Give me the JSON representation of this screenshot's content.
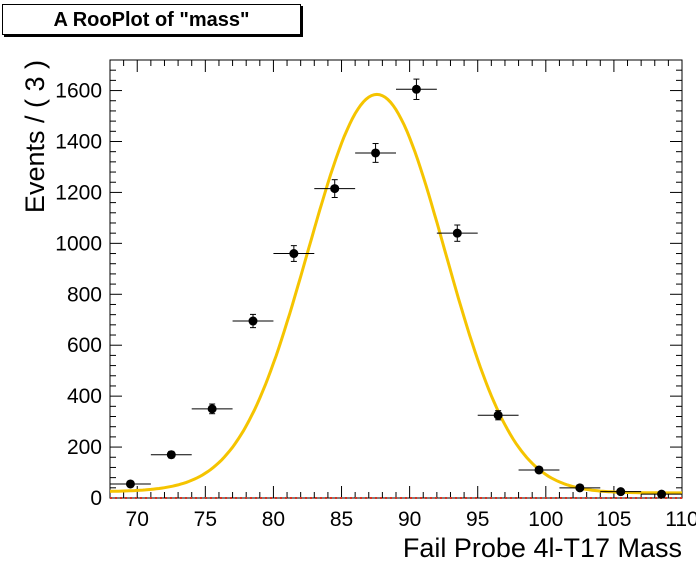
{
  "title": "A RooPlot of \"mass\"",
  "chart_data": {
    "type": "scatter",
    "title": "A RooPlot of \"mass\"",
    "xlabel": "Fail Probe 4l-T17    Mass",
    "ylabel": "Events / ( 3 )",
    "xlim": [
      68,
      110
    ],
    "ylim": [
      0,
      1720
    ],
    "x_ticks": [
      70,
      75,
      80,
      85,
      90,
      95,
      100,
      105,
      110
    ],
    "y_ticks": [
      0,
      200,
      400,
      600,
      800,
      1000,
      1200,
      1400,
      1600
    ],
    "bin_width": 3,
    "series": [
      {
        "kind": "data",
        "points": [
          {
            "x": 69.5,
            "y": 55,
            "err": 7
          },
          {
            "x": 72.5,
            "y": 170,
            "err": 13
          },
          {
            "x": 75.5,
            "y": 350,
            "err": 19
          },
          {
            "x": 78.5,
            "y": 695,
            "err": 26
          },
          {
            "x": 81.5,
            "y": 960,
            "err": 31
          },
          {
            "x": 84.5,
            "y": 1215,
            "err": 35
          },
          {
            "x": 87.5,
            "y": 1355,
            "err": 37
          },
          {
            "x": 90.5,
            "y": 1605,
            "err": 40
          },
          {
            "x": 93.5,
            "y": 1040,
            "err": 32
          },
          {
            "x": 96.5,
            "y": 325,
            "err": 18
          },
          {
            "x": 99.5,
            "y": 110,
            "err": 10
          },
          {
            "x": 102.5,
            "y": 40,
            "err": 6
          },
          {
            "x": 105.5,
            "y": 25,
            "err": 5
          },
          {
            "x": 108.5,
            "y": 15,
            "err": 4
          }
        ],
        "color": "#000000"
      },
      {
        "kind": "fit",
        "model": "gaussian_plus_constant",
        "mean": 87.6,
        "sigma": 5.0,
        "amplitude": 1565,
        "constant": 20,
        "left_tail_extra": 60,
        "color": "#f5c400"
      },
      {
        "kind": "background",
        "constant": 0,
        "color": "#e0301e",
        "style": "dotted"
      }
    ],
    "grid": false,
    "legend": "none"
  }
}
